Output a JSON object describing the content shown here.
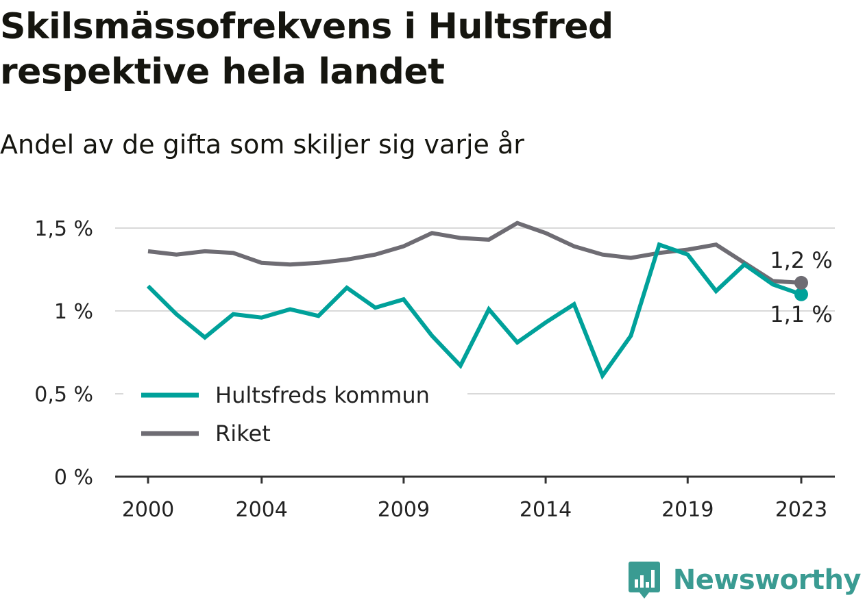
{
  "header": {
    "title": "Skilsmässofrekvens i Hultsfred respektive hela landet",
    "subtitle": "Andel av de gifta som skiljer sig varje år"
  },
  "branding": {
    "name": "Newsworthy",
    "color": "#3a9b92"
  },
  "chart_data": {
    "type": "line",
    "title": "Skilsmässofrekvens i Hultsfred respektive hela landet",
    "subtitle": "Andel av de gifta som skiljer sig varje år",
    "x": [
      2000,
      2001,
      2002,
      2003,
      2004,
      2005,
      2006,
      2007,
      2008,
      2009,
      2010,
      2011,
      2012,
      2013,
      2014,
      2015,
      2016,
      2017,
      2018,
      2019,
      2020,
      2021,
      2022,
      2023
    ],
    "xlim": [
      2000,
      2023
    ],
    "x_ticks": [
      2000,
      2004,
      2009,
      2014,
      2019,
      2023
    ],
    "x_tick_labels": [
      "2000",
      "2004",
      "2009",
      "2014",
      "2019",
      "2023"
    ],
    "ylim": [
      0,
      1.5
    ],
    "y_ticks": [
      0,
      0.5,
      1,
      1.5
    ],
    "y_tick_labels": [
      "0 %",
      "0,5 %",
      "1 %",
      "1,5 %"
    ],
    "grid": true,
    "legend_position": "bottom-left",
    "series": [
      {
        "name": "Hultsfreds kommun",
        "color": "#00a19a",
        "values": [
          1.15,
          0.98,
          0.84,
          0.98,
          0.96,
          1.01,
          0.97,
          1.14,
          1.02,
          1.07,
          0.85,
          0.67,
          1.01,
          0.81,
          0.93,
          1.04,
          0.61,
          0.85,
          1.4,
          1.34,
          1.12,
          1.28,
          1.16,
          1.1
        ],
        "end_label": "1,1 %"
      },
      {
        "name": "Riket",
        "color": "#6e6c73",
        "values": [
          1.36,
          1.34,
          1.36,
          1.35,
          1.29,
          1.28,
          1.29,
          1.31,
          1.34,
          1.39,
          1.47,
          1.44,
          1.43,
          1.53,
          1.47,
          1.39,
          1.34,
          1.32,
          1.35,
          1.37,
          1.4,
          1.29,
          1.18,
          1.17
        ],
        "end_label": "1,2 %"
      }
    ]
  }
}
